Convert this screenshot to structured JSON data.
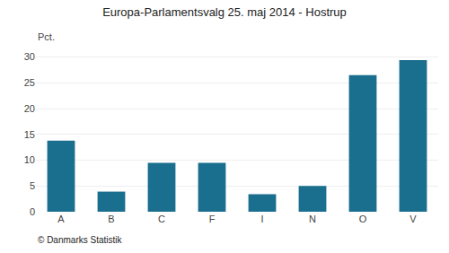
{
  "chart_data": {
    "type": "bar",
    "title": "Europa-Parlamentsvalg 25. maj 2014 - Hostrup",
    "categories": [
      "A",
      "B",
      "C",
      "F",
      "I",
      "N",
      "O",
      "V"
    ],
    "values": [
      13.8,
      3.9,
      9.5,
      9.5,
      3.4,
      5.0,
      26.5,
      29.4
    ],
    "color": "#1a6e8e",
    "ylabel": "Pct.",
    "ylim": [
      0,
      32
    ],
    "yticks": [
      0,
      5,
      10,
      15,
      20,
      25,
      30
    ],
    "grid": true,
    "annotations": [
      "© Danmarks Statistik"
    ]
  }
}
